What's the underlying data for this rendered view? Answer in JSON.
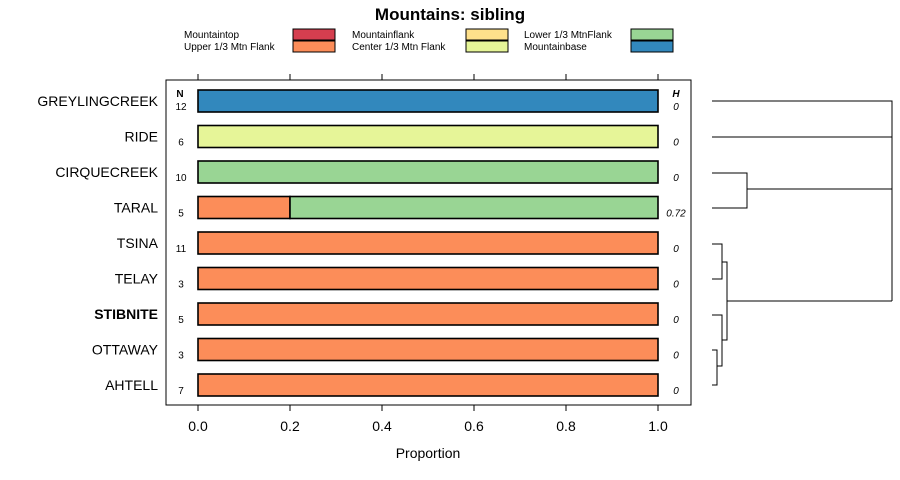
{
  "chart_data": {
    "type": "bar",
    "orientation": "horizontal",
    "stacked": true,
    "title": "Mountains: sibling",
    "xlabel": "Proportion",
    "xlim": [
      0,
      1
    ],
    "xticks": [
      "0.0",
      "0.2",
      "0.4",
      "0.6",
      "0.8",
      "1.0"
    ],
    "n_header": "N",
    "h_header": "H",
    "legend": [
      {
        "name": "Mountaintop",
        "color": "#d53e4f"
      },
      {
        "name": "Upper 1/3 Mtn Flank",
        "color": "#fc8d59"
      },
      {
        "name": "Mountainflank",
        "color": "#fee08b"
      },
      {
        "name": "Center 1/3 Mtn Flank",
        "color": "#e6f598"
      },
      {
        "name": "Lower 1/3 MtnFlank",
        "color": "#99d594"
      },
      {
        "name": "Mountainbase",
        "color": "#3288bd"
      }
    ],
    "categories": [
      "GREYLINGCREEK",
      "RIDE",
      "CIRQUECREEK",
      "TARAL",
      "TSINA",
      "TELAY",
      "STIBNITE",
      "OTTAWAY",
      "AHTELL"
    ],
    "highlighted": "STIBNITE",
    "n": [
      "12",
      "6",
      "10",
      "5",
      "11",
      "3",
      "5",
      "3",
      "7"
    ],
    "h": [
      "0",
      "0",
      "0",
      "0.72",
      "0",
      "0",
      "0",
      "0",
      "0"
    ],
    "series": [
      {
        "name": "Mountaintop",
        "values": [
          0,
          0,
          0,
          0,
          0,
          0,
          0,
          0,
          0
        ]
      },
      {
        "name": "Upper 1/3 Mtn Flank",
        "values": [
          0,
          0,
          0,
          0.2,
          1,
          1,
          1,
          1,
          1
        ]
      },
      {
        "name": "Mountainflank",
        "values": [
          0,
          0,
          0,
          0,
          0,
          0,
          0,
          0,
          0
        ]
      },
      {
        "name": "Center 1/3 Mtn Flank",
        "values": [
          0,
          1,
          0,
          0,
          0,
          0,
          0,
          0,
          0
        ]
      },
      {
        "name": "Lower 1/3 MtnFlank",
        "values": [
          0,
          0,
          1,
          0.8,
          0,
          0,
          0,
          0,
          0
        ]
      },
      {
        "name": "Mountainbase",
        "values": [
          1,
          0,
          0,
          0,
          0,
          0,
          0,
          0,
          0
        ]
      }
    ]
  }
}
